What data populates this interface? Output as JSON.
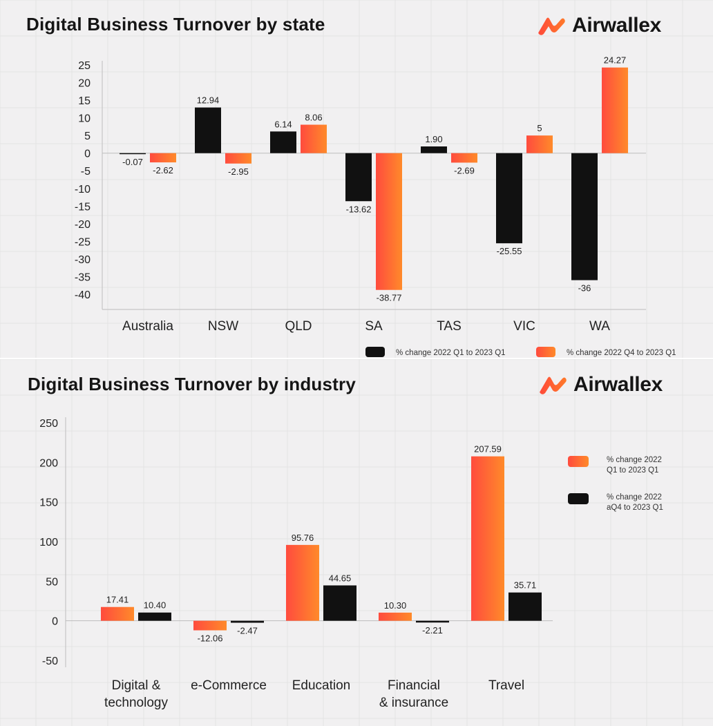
{
  "brand": {
    "name": "Airwallex",
    "logo_icon": "airwallex-logo-icon",
    "accent": "#ff6a2c",
    "accent_light": "#ff4a3a"
  },
  "colors": {
    "dark": "#111111",
    "orange_from": "#ff4b3e",
    "orange_to": "#ff8a2a",
    "background": "#f1f0f1",
    "grid": "#e4e3e4"
  },
  "chart_data": [
    {
      "type": "bar",
      "title": "Digital Business Turnover by state",
      "categories": [
        "Australia",
        "NSW",
        "QLD",
        "SA",
        "TAS",
        "VIC",
        "WA"
      ],
      "series": [
        {
          "name": "% change 2022 Q1 to 2023 Q1",
          "color": "dark",
          "values": [
            -0.07,
            12.94,
            6.14,
            -13.62,
            1.9,
            -25.55,
            -36
          ],
          "labels": [
            "-0.07",
            "12.94",
            "6.14",
            "-13.62",
            "1.90",
            "-25.55",
            "-36"
          ]
        },
        {
          "name": "% change 2022 Q4 to 2023 Q1",
          "color": "orange",
          "values": [
            -2.62,
            -2.95,
            8.06,
            -38.77,
            -2.69,
            5,
            24.27
          ],
          "labels": [
            "-2.62",
            "-2.95",
            "8.06",
            "-38.77",
            "-2.69",
            "5",
            "24.27"
          ]
        }
      ],
      "yticks": [
        25,
        20,
        15,
        10,
        5,
        0,
        -5,
        -10,
        -15,
        -20,
        -25,
        -30,
        -35,
        -40
      ],
      "ylim": [
        -40,
        25
      ],
      "grid": true,
      "legend_position": "bottom-right"
    },
    {
      "type": "bar",
      "title": "Digital Business Turnover by industry",
      "categories": [
        [
          "Digital &",
          "technology"
        ],
        [
          "e-Commerce"
        ],
        [
          "Education"
        ],
        [
          "Financial",
          "& insurance"
        ],
        [
          "Travel"
        ]
      ],
      "series": [
        {
          "name": "% change 2022 Q1 to 2023 Q1",
          "name_lines": [
            "% change 2022",
            "Q1 to 2023 Q1"
          ],
          "color": "orange",
          "values": [
            17.41,
            -12.06,
            95.76,
            10.3,
            207.59
          ],
          "labels": [
            "17.41",
            "-12.06",
            "95.76",
            "10.30",
            "207.59"
          ]
        },
        {
          "name": "% change 2022 aQ4 to 2023 Q1",
          "name_lines": [
            "% change 2022",
            "aQ4 to 2023 Q1"
          ],
          "color": "dark",
          "values": [
            10.4,
            -2.47,
            44.65,
            -2.21,
            35.71
          ],
          "labels": [
            "10.40",
            "-2.47",
            "44.65",
            "-2.21",
            "35.71"
          ]
        }
      ],
      "yticks": [
        250,
        200,
        150,
        100,
        50,
        0,
        -50
      ],
      "ylim": [
        -50,
        250
      ],
      "grid": true,
      "legend_position": "right"
    }
  ]
}
